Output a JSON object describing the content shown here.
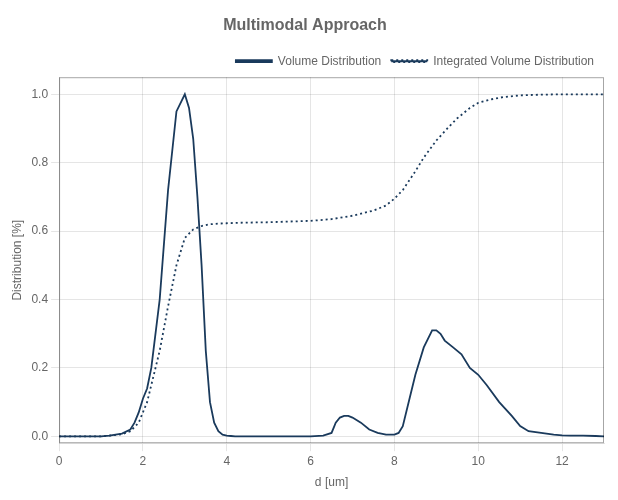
{
  "chart_data": {
    "type": "line",
    "title": "Multimodal Approach",
    "xlabel": "d [um]",
    "ylabel": "Distribution [%]",
    "xlim": [
      0,
      13
    ],
    "ylim": [
      -0.02,
      1.05
    ],
    "xticks": [
      0,
      2,
      4,
      6,
      8,
      10,
      12
    ],
    "yticks": [
      {
        "value": 0,
        "label": "0.0"
      },
      0.2,
      0.4,
      0.6,
      0.8,
      {
        "value": 1,
        "label": "1.0"
      }
    ],
    "grid": true,
    "legend": "upper right",
    "series": [
      {
        "name": "Volume Distribution",
        "color": "#1a3a5c",
        "line_style": "solid",
        "x": [
          0.0,
          0.5,
          1.0,
          1.2,
          1.5,
          1.7,
          1.8,
          1.9,
          2.0,
          2.1,
          2.2,
          2.4,
          2.6,
          2.8,
          3.0,
          3.1,
          3.2,
          3.3,
          3.4,
          3.5,
          3.6,
          3.7,
          3.8,
          3.9,
          4.0,
          4.1,
          4.2,
          4.5,
          5.0,
          5.5,
          6.0,
          6.3,
          6.5,
          6.55,
          6.6,
          6.7,
          6.8,
          6.9,
          7.0,
          7.2,
          7.4,
          7.6,
          7.8,
          8.0,
          8.1,
          8.2,
          8.3,
          8.5,
          8.7,
          8.9,
          9.0,
          9.1,
          9.2,
          9.4,
          9.6,
          9.8,
          10.0,
          10.2,
          10.5,
          10.8,
          11.0,
          11.2,
          11.5,
          11.8,
          12.0,
          12.2,
          12.5,
          12.8,
          13.0
        ],
        "values": [
          0.0,
          0.0,
          0.0,
          0.002,
          0.008,
          0.02,
          0.04,
          0.07,
          0.11,
          0.14,
          0.2,
          0.4,
          0.72,
          0.95,
          1.0,
          0.96,
          0.87,
          0.7,
          0.5,
          0.25,
          0.1,
          0.04,
          0.015,
          0.005,
          0.002,
          0.001,
          0.0,
          0.0,
          0.0,
          0.0,
          0.0,
          0.002,
          0.01,
          0.025,
          0.04,
          0.055,
          0.06,
          0.06,
          0.055,
          0.04,
          0.02,
          0.01,
          0.005,
          0.005,
          0.01,
          0.03,
          0.08,
          0.18,
          0.26,
          0.31,
          0.31,
          0.3,
          0.28,
          0.26,
          0.24,
          0.2,
          0.18,
          0.15,
          0.1,
          0.06,
          0.03,
          0.015,
          0.01,
          0.005,
          0.003,
          0.002,
          0.002,
          0.001,
          0.0
        ]
      },
      {
        "name": "Integrated Volume Distribution",
        "color": "#1a3a5c",
        "line_style": "dotted",
        "x": [
          0.0,
          0.5,
          1.0,
          1.2,
          1.5,
          1.7,
          1.9,
          2.0,
          2.1,
          2.2,
          2.4,
          2.6,
          2.8,
          3.0,
          3.2,
          3.4,
          3.6,
          3.8,
          4.0,
          4.2,
          4.5,
          5.0,
          5.5,
          6.0,
          6.5,
          7.0,
          7.5,
          7.8,
          8.0,
          8.2,
          8.5,
          8.7,
          9.0,
          9.3,
          9.5,
          9.8,
          10.0,
          10.3,
          10.6,
          11.0,
          11.5,
          12.0,
          12.5,
          13.0
        ],
        "values": [
          0.0,
          0.0,
          0.0,
          0.002,
          0.006,
          0.015,
          0.04,
          0.07,
          0.1,
          0.15,
          0.25,
          0.38,
          0.5,
          0.58,
          0.605,
          0.615,
          0.62,
          0.622,
          0.623,
          0.624,
          0.625,
          0.626,
          0.628,
          0.63,
          0.635,
          0.645,
          0.66,
          0.675,
          0.695,
          0.72,
          0.775,
          0.815,
          0.865,
          0.905,
          0.93,
          0.96,
          0.975,
          0.985,
          0.992,
          0.997,
          0.999,
          1.0,
          1.0,
          1.0
        ]
      }
    ]
  }
}
